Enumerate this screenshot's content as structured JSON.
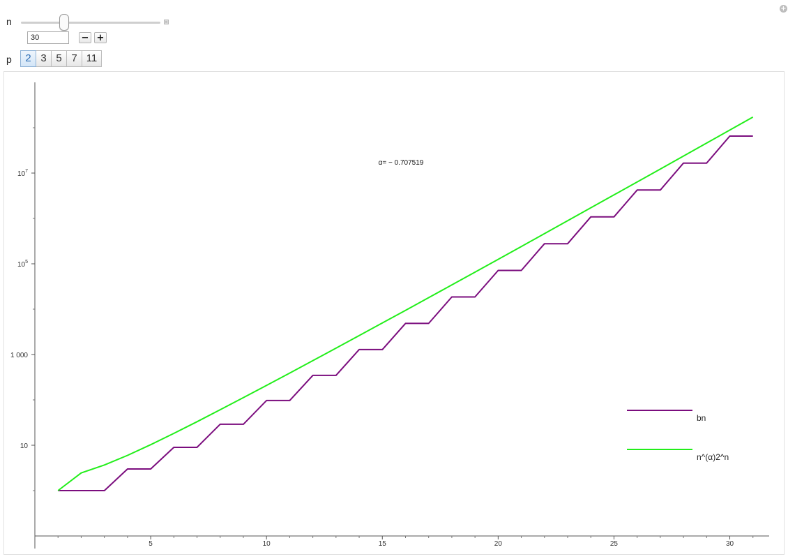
{
  "controls": {
    "n": {
      "label": "n",
      "value": "30",
      "slider_min": 1,
      "slider_max": 100,
      "slider_value": 30,
      "decrement_label": "−",
      "increment_label": "+"
    },
    "p": {
      "label": "p",
      "options": [
        "2",
        "3",
        "5",
        "7",
        "11"
      ],
      "selected": "2"
    }
  },
  "chart_data": {
    "type": "line",
    "title": "",
    "xlabel": "",
    "ylabel": "",
    "y_scale": "log",
    "xlim": [
      0,
      31.7
    ],
    "ylim": [
      0.1,
      1000000000
    ],
    "x_ticks": [
      5,
      10,
      15,
      20,
      25,
      30
    ],
    "x_tick_labels": [
      "5",
      "10",
      "15",
      "20",
      "25",
      "30"
    ],
    "x_minor_ticks": [
      1,
      2,
      3,
      4,
      6,
      7,
      8,
      9,
      11,
      12,
      13,
      14,
      16,
      17,
      18,
      19,
      21,
      22,
      23,
      24,
      26,
      27,
      28,
      29,
      31
    ],
    "y_ticks": [
      10,
      1000,
      100000,
      10000000
    ],
    "y_tick_labels": [
      {
        "base": "10",
        "exp": ""
      },
      {
        "base": "1 000",
        "exp": ""
      },
      {
        "base": "10",
        "exp": "5"
      },
      {
        "base": "10",
        "exp": "7"
      }
    ],
    "y_minor_ticks": [
      1,
      100,
      10000,
      1000000,
      100000000
    ],
    "annotation": "α= − 0.707519",
    "grid": false,
    "legend_position": "right",
    "series": [
      {
        "name": "bn",
        "color": "#7b0d7e",
        "x": [
          1,
          2,
          3,
          4,
          5,
          6,
          7,
          8,
          9,
          10,
          11,
          12,
          13,
          14,
          15,
          16,
          17,
          18,
          19,
          20,
          21,
          22,
          23,
          24,
          25,
          26,
          27,
          28,
          29,
          30,
          31
        ],
        "y": [
          1,
          1,
          1,
          3,
          3,
          9,
          9,
          29,
          29,
          97,
          97,
          347,
          347,
          1287,
          1287,
          4862,
          4862,
          18570,
          18570,
          71500,
          71500,
          277640,
          277640,
          1081575,
          1081575,
          4229548,
          4229548,
          16603000,
          16603000,
          65400000,
          65400000
        ]
      },
      {
        "name": "n^(α)2^n",
        "color": "#22ee1a",
        "x": [
          1,
          2,
          3,
          4,
          5,
          6,
          7,
          8,
          9,
          10,
          11,
          12,
          13,
          14,
          15,
          16,
          17,
          18,
          19,
          20,
          21,
          22,
          23,
          24,
          25,
          26,
          27,
          28,
          29,
          30,
          31
        ],
        "y": [
          1.0,
          2.45,
          3.67,
          5.98,
          10.27,
          18.23,
          33.03,
          60.7,
          112.2,
          208.9,
          390.3,
          733.0,
          1382,
          2612,
          4953,
          9411,
          17930,
          34220,
          65450,
          125390,
          240510,
          461990,
          888350,
          1710400,
          3296700,
          6359400,
          12278000,
          23721000,
          45862000,
          88733000,
          171780000
        ]
      }
    ]
  }
}
